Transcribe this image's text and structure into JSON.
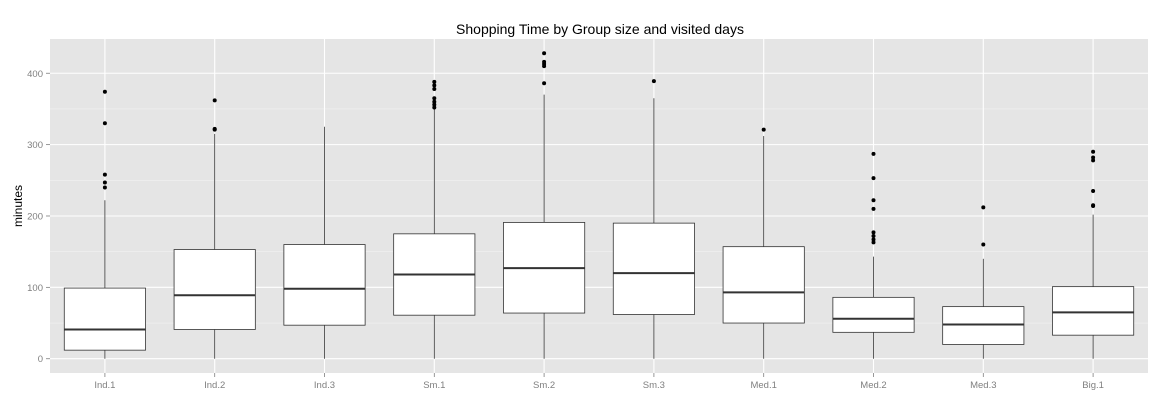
{
  "chart_data": {
    "type": "boxplot",
    "title": "Shopping Time by Group size and visited days",
    "xlabel": "",
    "ylabel": "minutes",
    "ylim": [
      -20,
      448
    ],
    "yticks": [
      0,
      100,
      200,
      300,
      400
    ],
    "grid": true,
    "legend": "none",
    "categories": [
      "Ind.1",
      "Ind.2",
      "Ind.3",
      "Sm.1",
      "Sm.2",
      "Sm.3",
      "Med.1",
      "Med.2",
      "Med.3",
      "Big.1"
    ],
    "boxes": [
      {
        "min": 0,
        "q1": 12,
        "median": 41,
        "q3": 99,
        "max": 222,
        "outliers": [
          240,
          247,
          258,
          330,
          374
        ]
      },
      {
        "min": 0,
        "q1": 41,
        "median": 89,
        "q3": 153,
        "max": 315,
        "outliers": [
          321,
          322,
          362
        ]
      },
      {
        "min": 0,
        "q1": 47,
        "median": 98,
        "q3": 160,
        "max": 325,
        "outliers": []
      },
      {
        "min": 0,
        "q1": 61,
        "median": 118,
        "q3": 175,
        "max": 350,
        "outliers": [
          352,
          356,
          360,
          365,
          378,
          383,
          388
        ]
      },
      {
        "min": 0,
        "q1": 64,
        "median": 127,
        "q3": 191,
        "max": 370,
        "outliers": [
          386,
          410,
          413,
          416,
          428
        ]
      },
      {
        "min": 0,
        "q1": 62,
        "median": 120,
        "q3": 190,
        "max": 365,
        "outliers": [
          389
        ]
      },
      {
        "min": 0,
        "q1": 50,
        "median": 93,
        "q3": 157,
        "max": 312,
        "outliers": [
          321
        ]
      },
      {
        "min": 0,
        "q1": 37,
        "median": 56,
        "q3": 86,
        "max": 143,
        "outliers": [
          163,
          167,
          172,
          177,
          210,
          222,
          253,
          287
        ]
      },
      {
        "min": 0,
        "q1": 20,
        "median": 48,
        "q3": 73,
        "max": 140,
        "outliers": [
          160,
          212
        ]
      },
      {
        "min": 0,
        "q1": 33,
        "median": 65,
        "q3": 101,
        "max": 202,
        "outliers": [
          214,
          215,
          235,
          278,
          282,
          290
        ]
      }
    ]
  },
  "colors": {
    "panel": "#e5e5e5",
    "grid_major": "#ffffff",
    "grid_minor": "#f2f2f2",
    "box_fill": "#ffffff",
    "box_stroke": "#333333",
    "tick_text": "#7f7f7f"
  }
}
